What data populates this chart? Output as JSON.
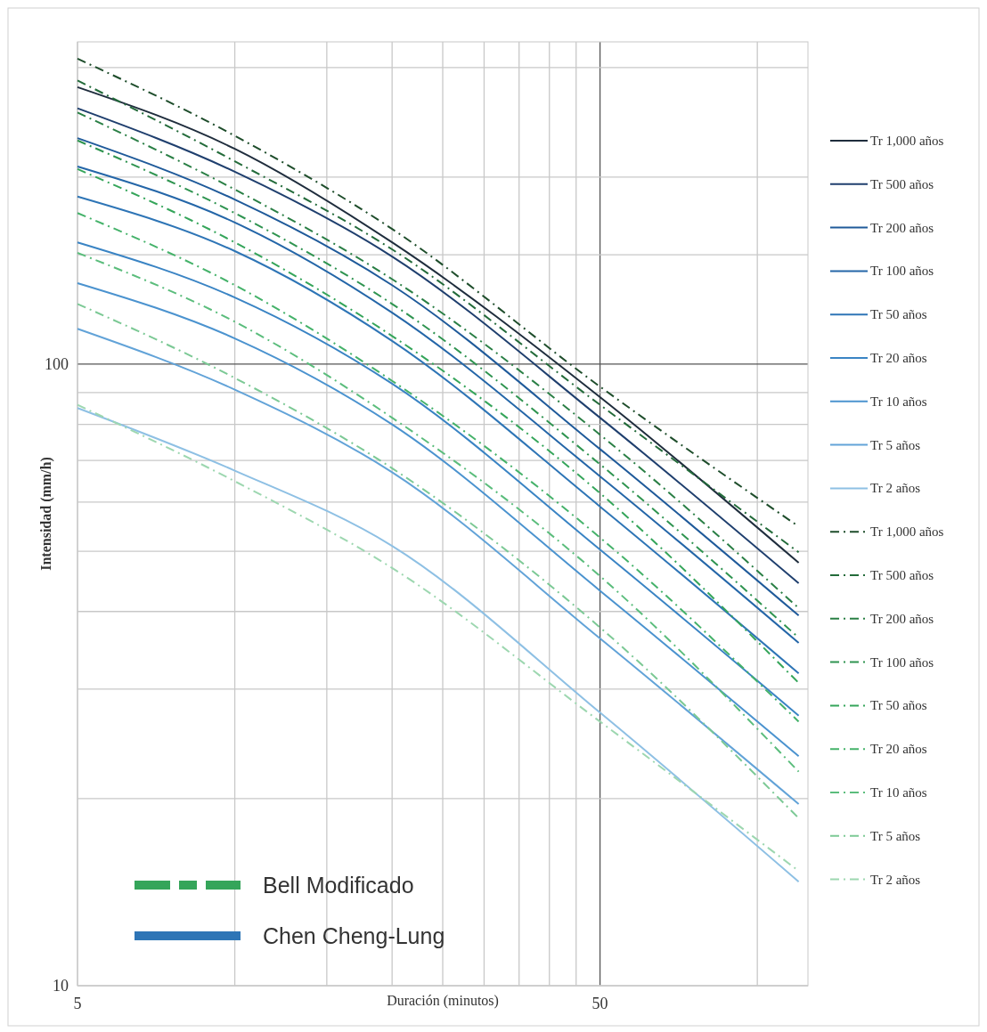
{
  "chart_data": {
    "type": "line",
    "xlabel": "Duración (minutos)",
    "ylabel": "Intensidad (mm/h)",
    "log": "xy",
    "grid": true,
    "legend": "right",
    "xlim": [
      5,
      125
    ],
    "ylim": [
      10,
      330
    ],
    "xticks": [
      5,
      {
        "value": 10,
        "label": null
      },
      {
        "value": 15,
        "label": null
      },
      {
        "value": 20,
        "label": null
      },
      {
        "value": 25,
        "label": null
      },
      {
        "value": 30,
        "label": null
      },
      {
        "value": 35,
        "label": null
      },
      {
        "value": 40,
        "label": null
      },
      {
        "value": 45,
        "label": null
      },
      50,
      {
        "value": 100,
        "label": null
      }
    ],
    "yticks": [
      10,
      {
        "value": 20,
        "label": null
      },
      {
        "value": 30,
        "label": null
      },
      {
        "value": 40,
        "label": null
      },
      {
        "value": 50,
        "label": null
      },
      {
        "value": 60,
        "label": null
      },
      {
        "value": 70,
        "label": null
      },
      {
        "value": 80,
        "label": null
      },
      {
        "value": 90,
        "label": null
      },
      100,
      {
        "value": 150,
        "label": null
      },
      {
        "value": 200,
        "label": null
      },
      {
        "value": 300,
        "label": null
      }
    ],
    "x": [
      5,
      10,
      20,
      50,
      120
    ],
    "series": [
      {
        "name": "Tr 1,000 años",
        "color": "#1f2d3d",
        "line_style": "solid",
        "values": [
          279,
          222,
          157,
          88.5,
          47.9
        ]
      },
      {
        "name": "Tr 500 años",
        "color": "#1f3f6e",
        "line_style": "solid",
        "values": [
          258,
          204,
          149,
          82,
          44.4
        ]
      },
      {
        "name": "Tr 200 años",
        "color": "#1f5a9a",
        "line_style": "solid",
        "values": [
          231,
          184,
          134,
          73,
          39.4
        ]
      },
      {
        "name": "Tr 100 años",
        "color": "#2466a8",
        "line_style": "solid",
        "values": [
          208,
          169,
          121,
          66,
          35.6
        ]
      },
      {
        "name": "Tr 50 años",
        "color": "#2e75b6",
        "line_style": "solid",
        "values": [
          186,
          152,
          109,
          59,
          31.8
        ]
      },
      {
        "name": "Tr 20 años",
        "color": "#3a84c4",
        "line_style": "solid",
        "values": [
          157,
          128,
          93,
          50.3,
          27.2
        ]
      },
      {
        "name": "Tr 10 años",
        "color": "#4b93cf",
        "line_style": "solid",
        "values": [
          135,
          110,
          80,
          43.2,
          23.4
        ]
      },
      {
        "name": "Tr 5 años",
        "color": "#62a3d8",
        "line_style": "solid",
        "values": [
          114,
          91,
          67,
          36.2,
          19.6
        ]
      },
      {
        "name": "Tr 2 años",
        "color": "#8ec0e4",
        "line_style": "solid",
        "values": [
          85,
          67.4,
          51,
          27.5,
          14.7
        ]
      },
      {
        "name": "Tr 1,000 años",
        "color": "#1e4d2b",
        "line_style": "dashed",
        "values": [
          310,
          233,
          165,
          92,
          54.8
        ]
      },
      {
        "name": "Tr 500 años",
        "color": "#236b3a",
        "line_style": "dashed",
        "values": [
          286,
          212,
          153,
          86,
          49.8
        ]
      },
      {
        "name": "Tr 200 años",
        "color": "#2a7f45",
        "line_style": "dashed",
        "values": [
          254,
          191,
          137,
          77,
          40.5
        ]
      },
      {
        "name": "Tr 100 años",
        "color": "#2f9450",
        "line_style": "dashed",
        "values": [
          229,
          175,
          125,
          69,
          36.3
        ]
      },
      {
        "name": "Tr 50 años",
        "color": "#35a55a",
        "line_style": "dashed",
        "values": [
          206,
          157,
          111,
          62,
          30.7
        ]
      },
      {
        "name": "Tr 20 años",
        "color": "#45b26a",
        "line_style": "dashed",
        "values": [
          175,
          134,
          94,
          52.6,
          26.6
        ]
      },
      {
        "name": "Tr 10 años",
        "color": "#5bbd7c",
        "line_style": "dashed",
        "values": [
          151,
          117,
          82,
          45.6,
          22.1
        ]
      },
      {
        "name": "Tr 5 años",
        "color": "#7cc995",
        "line_style": "dashed",
        "values": [
          125,
          95,
          68,
          37.7,
          18.6
        ]
      },
      {
        "name": "Tr 2 años",
        "color": "#9dd7b0",
        "line_style": "dashed",
        "values": [
          86,
          64.8,
          47,
          26.6,
          15.3
        ]
      }
    ],
    "annotations": [
      "Bell Modificado",
      "Chen Cheng-Lung"
    ]
  }
}
